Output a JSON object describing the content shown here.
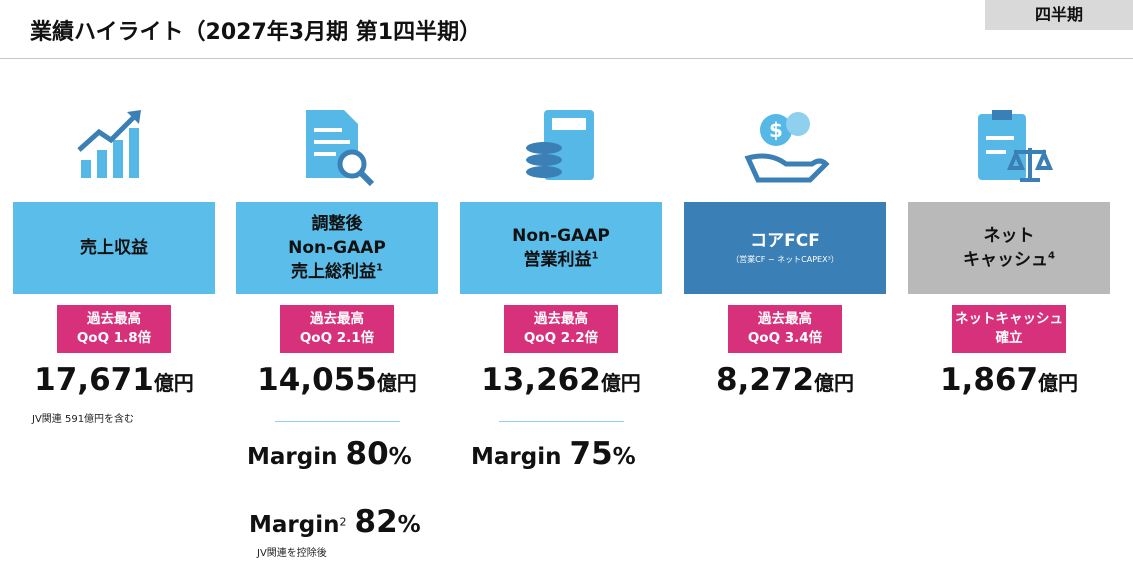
{
  "header": {
    "title": "業績ハイライト（2027年3月期 第1四半期）",
    "tag": "四半期"
  },
  "cards": [
    {
      "label": [
        "売上収益"
      ],
      "badge": [
        "過去最高",
        "QoQ 1.8倍"
      ],
      "value": "17,671",
      "unit": "億円",
      "note": "JV関連 591億円を含む"
    },
    {
      "label": [
        "調整後",
        "Non-GAAP",
        "売上総利益"
      ],
      "sup": "1",
      "badge": [
        "過去最高",
        "QoQ 2.1倍"
      ],
      "value": "14,055",
      "unit": "億円",
      "margins": [
        {
          "label": "Margin",
          "value": "80",
          "unit": "%"
        },
        {
          "label": "Margin",
          "sup": "2",
          "value": "82",
          "unit": "%",
          "note": "JV関連を控除後"
        }
      ]
    },
    {
      "label": [
        "Non-GAAP",
        "営業利益"
      ],
      "sup": "1",
      "badge": [
        "過去最高",
        "QoQ 2.2倍"
      ],
      "value": "13,262",
      "unit": "億円",
      "margins": [
        {
          "label": "Margin",
          "value": "75",
          "unit": "%"
        }
      ]
    },
    {
      "label": [
        "コアFCF"
      ],
      "sublabel": "（営業CF − ネットCAPEX³）",
      "badge": [
        "過去最高",
        "QoQ 3.4倍"
      ],
      "value": "8,272",
      "unit": "億円"
    },
    {
      "label": [
        "ネット",
        "キャッシュ"
      ],
      "sup": "4",
      "badge": [
        "ネットキャッシュ",
        "確立"
      ],
      "value": "1,867",
      "unit": "億円"
    }
  ]
}
